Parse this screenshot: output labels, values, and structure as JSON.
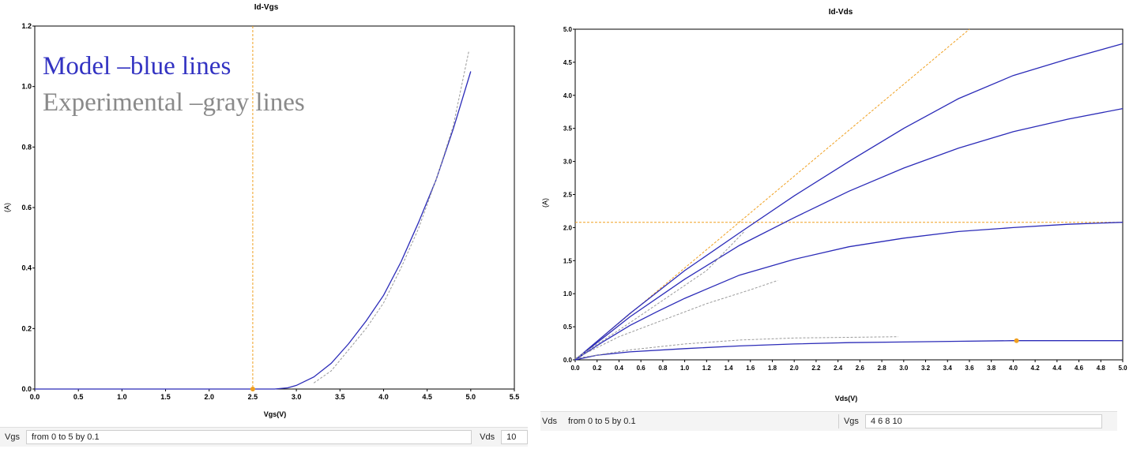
{
  "left": {
    "chart_data": {
      "type": "line",
      "title": "Id-Vgs",
      "xlabel": "Vgs(V)",
      "ylabel": "(A)",
      "xlim": [
        0,
        5.5
      ],
      "ylim": [
        0,
        1.2
      ],
      "xticks": [
        "0.0",
        "0.5",
        "1.0",
        "1.5",
        "2.0",
        "2.5",
        "3.0",
        "3.5",
        "4.0",
        "4.5",
        "5.0",
        "5.5"
      ],
      "yticks": [
        "0.0",
        "0.2",
        "0.4",
        "0.6",
        "0.8",
        "1.0",
        "1.2"
      ],
      "legend_model": "Model –blue lines",
      "legend_experimental": "Experimental –gray lines",
      "cursor": {
        "x": 2.5,
        "y": 0.0
      },
      "series": [
        {
          "kind": "model",
          "color": "#2b2bb8",
          "points": [
            [
              0,
              0
            ],
            [
              2.75,
              0.0
            ],
            [
              2.9,
              0.004
            ],
            [
              3.0,
              0.012
            ],
            [
              3.2,
              0.04
            ],
            [
              3.4,
              0.085
            ],
            [
              3.6,
              0.15
            ],
            [
              3.8,
              0.225
            ],
            [
              4.0,
              0.31
            ],
            [
              4.2,
              0.42
            ],
            [
              4.4,
              0.55
            ],
            [
              4.6,
              0.69
            ],
            [
              4.8,
              0.86
            ],
            [
              5.0,
              1.05
            ]
          ]
        },
        {
          "kind": "experimental",
          "color": "#9a9a9a",
          "points": [
            [
              3.2,
              0.02
            ],
            [
              3.4,
              0.06
            ],
            [
              3.6,
              0.13
            ],
            [
              3.8,
              0.2
            ],
            [
              4.0,
              0.285
            ],
            [
              4.2,
              0.4
            ],
            [
              4.4,
              0.53
            ],
            [
              4.6,
              0.69
            ],
            [
              4.8,
              0.87
            ],
            [
              4.98,
              1.12
            ]
          ]
        }
      ]
    },
    "bottom": {
      "label1": "Vgs",
      "value1": "from 0 to 5 by 0.1",
      "label2": "Vds",
      "value2": "10"
    }
  },
  "right": {
    "chart_data": {
      "type": "line",
      "title": "Id-Vds",
      "xlabel": "Vds(V)",
      "ylabel": "(A)",
      "xlim": [
        0,
        5
      ],
      "ylim": [
        0,
        5
      ],
      "xticks": [
        "0.0",
        "0.2",
        "0.4",
        "0.6",
        "0.8",
        "1.0",
        "1.2",
        "1.4",
        "1.6",
        "1.8",
        "2.0",
        "2.2",
        "2.4",
        "2.6",
        "2.8",
        "3.0",
        "3.2",
        "3.4",
        "3.6",
        "3.8",
        "4.0",
        "4.2",
        "4.4",
        "4.6",
        "4.8",
        "5.0"
      ],
      "yticks": [
        "0.0",
        "0.5",
        "1.0",
        "1.5",
        "2.0",
        "2.5",
        "3.0",
        "3.5",
        "4.0",
        "4.5",
        "5.0"
      ],
      "hline": 2.08,
      "diag_end": [
        3.6,
        5.0
      ],
      "marker": {
        "x": 4.03,
        "y": 0.29
      },
      "series": [
        {
          "kind": "model",
          "color": "#2b2bb8",
          "points": [
            [
              0,
              0
            ],
            [
              0.2,
              0.07
            ],
            [
              0.5,
              0.12
            ],
            [
              1.0,
              0.17
            ],
            [
              1.5,
              0.21
            ],
            [
              2.0,
              0.24
            ],
            [
              2.5,
              0.26
            ],
            [
              3.0,
              0.27
            ],
            [
              3.5,
              0.28
            ],
            [
              4.0,
              0.29
            ],
            [
              4.5,
              0.29
            ],
            [
              5.0,
              0.29
            ]
          ]
        },
        {
          "kind": "model",
          "color": "#2b2bb8",
          "points": [
            [
              0,
              0
            ],
            [
              0.25,
              0.27
            ],
            [
              0.5,
              0.52
            ],
            [
              0.75,
              0.73
            ],
            [
              1.0,
              0.93
            ],
            [
              1.5,
              1.28
            ],
            [
              2.0,
              1.52
            ],
            [
              2.5,
              1.71
            ],
            [
              3.0,
              1.84
            ],
            [
              3.5,
              1.94
            ],
            [
              4.0,
              2.0
            ],
            [
              4.5,
              2.05
            ],
            [
              5.0,
              2.08
            ]
          ]
        },
        {
          "kind": "model",
          "color": "#2b2bb8",
          "points": [
            [
              0,
              0
            ],
            [
              0.5,
              0.65
            ],
            [
              1.0,
              1.22
            ],
            [
              1.5,
              1.73
            ],
            [
              2.0,
              2.15
            ],
            [
              2.5,
              2.55
            ],
            [
              3.0,
              2.9
            ],
            [
              3.5,
              3.2
            ],
            [
              4.0,
              3.45
            ],
            [
              4.5,
              3.64
            ],
            [
              5.0,
              3.8
            ]
          ]
        },
        {
          "kind": "model",
          "color": "#2b2bb8",
          "points": [
            [
              0,
              0
            ],
            [
              0.5,
              0.7
            ],
            [
              1.0,
              1.35
            ],
            [
              1.5,
              1.92
            ],
            [
              2.0,
              2.48
            ],
            [
              2.5,
              3.0
            ],
            [
              3.0,
              3.5
            ],
            [
              3.5,
              3.95
            ],
            [
              4.0,
              4.3
            ],
            [
              4.5,
              4.55
            ],
            [
              5.0,
              4.78
            ]
          ]
        },
        {
          "kind": "experimental",
          "color": "#9a9a9a",
          "points": [
            [
              0,
              0.02
            ],
            [
              0.5,
              0.15
            ],
            [
              1.0,
              0.24
            ],
            [
              1.5,
              0.3
            ],
            [
              2.0,
              0.33
            ],
            [
              2.5,
              0.34
            ],
            [
              2.95,
              0.35
            ]
          ]
        },
        {
          "kind": "experimental",
          "color": "#9a9a9a",
          "points": [
            [
              0,
              0.02
            ],
            [
              0.4,
              0.35
            ],
            [
              0.8,
              0.6
            ],
            [
              1.2,
              0.85
            ],
            [
              1.6,
              1.06
            ],
            [
              1.85,
              1.2
            ]
          ]
        },
        {
          "kind": "experimental",
          "color": "#9a9a9a",
          "points": [
            [
              0,
              0.02
            ],
            [
              0.4,
              0.45
            ],
            [
              0.8,
              0.9
            ],
            [
              1.2,
              1.35
            ],
            [
              1.55,
              1.95
            ]
          ]
        }
      ]
    },
    "bottom": {
      "label1": "Vds",
      "value1": "from 0 to 5 by 0.1",
      "label2": "Vgs",
      "value2": "4 6 8 10"
    }
  }
}
